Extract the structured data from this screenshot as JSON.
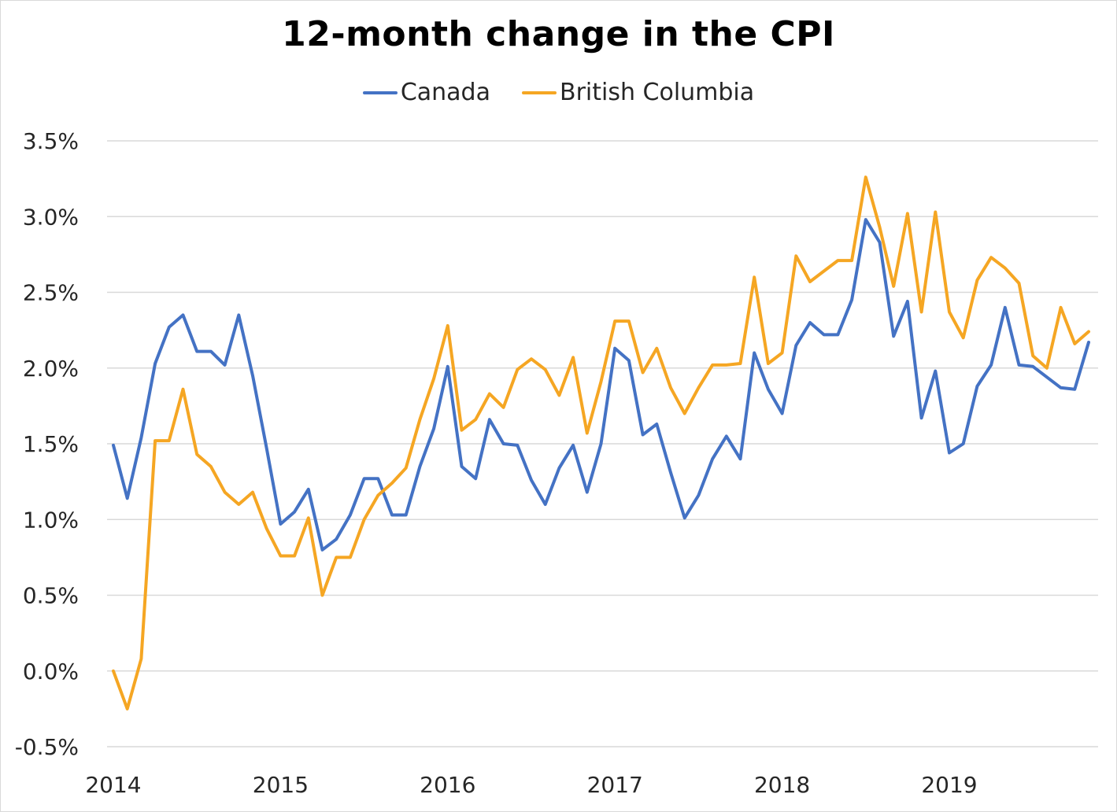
{
  "chart_data": {
    "type": "line",
    "title": "12-month change in the CPI",
    "xlabel": "",
    "ylabel": "",
    "legend_position": "top",
    "grid": true,
    "ylim": [
      -0.5,
      3.5
    ],
    "yticks": [
      "-0.5%",
      "0.0%",
      "0.5%",
      "1.0%",
      "1.5%",
      "2.0%",
      "2.5%",
      "3.0%",
      "3.5%"
    ],
    "xticks": [
      "2014",
      "2015",
      "2016",
      "2017",
      "2018",
      "2019"
    ],
    "series": [
      {
        "name": "Canada",
        "color": "#4472c4",
        "values": [
          1.49,
          1.14,
          1.54,
          2.03,
          2.27,
          2.35,
          2.11,
          2.11,
          2.02,
          2.35,
          1.95,
          1.47,
          0.97,
          1.05,
          1.2,
          0.8,
          0.87,
          1.03,
          1.27,
          1.27,
          1.03,
          1.03,
          1.35,
          1.6,
          2.01,
          1.35,
          1.27,
          1.66,
          1.5,
          1.49,
          1.26,
          1.1,
          1.34,
          1.49,
          1.18,
          1.5,
          2.13,
          2.05,
          1.56,
          1.63,
          1.31,
          1.01,
          1.16,
          1.4,
          1.55,
          1.4,
          2.1,
          1.86,
          1.7,
          2.15,
          2.3,
          2.22,
          2.22,
          2.45,
          2.98,
          2.83,
          2.21,
          2.44,
          1.67,
          1.98,
          1.44,
          1.5,
          1.88,
          2.02,
          2.4,
          2.02,
          2.01,
          1.94,
          1.87,
          1.86,
          2.17
        ]
      },
      {
        "name": "British Columbia",
        "color": "#f5a623",
        "values": [
          0.0,
          -0.25,
          0.08,
          1.52,
          1.52,
          1.86,
          1.43,
          1.35,
          1.18,
          1.1,
          1.18,
          0.94,
          0.76,
          0.76,
          1.01,
          0.5,
          0.75,
          0.75,
          1.0,
          1.16,
          1.24,
          1.34,
          1.66,
          1.93,
          2.28,
          1.59,
          1.66,
          1.83,
          1.74,
          1.99,
          2.06,
          1.99,
          1.82,
          2.07,
          1.57,
          1.91,
          2.31,
          2.31,
          1.97,
          2.13,
          1.87,
          1.7,
          1.87,
          2.02,
          2.02,
          2.03,
          2.6,
          2.03,
          2.1,
          2.74,
          2.57,
          2.64,
          2.71,
          2.71,
          3.26,
          2.93,
          2.54,
          3.02,
          2.37,
          3.03,
          2.37,
          2.2,
          2.58,
          2.73,
          2.66,
          2.56,
          2.08,
          2.0,
          2.4,
          2.16,
          2.24
        ]
      }
    ]
  }
}
